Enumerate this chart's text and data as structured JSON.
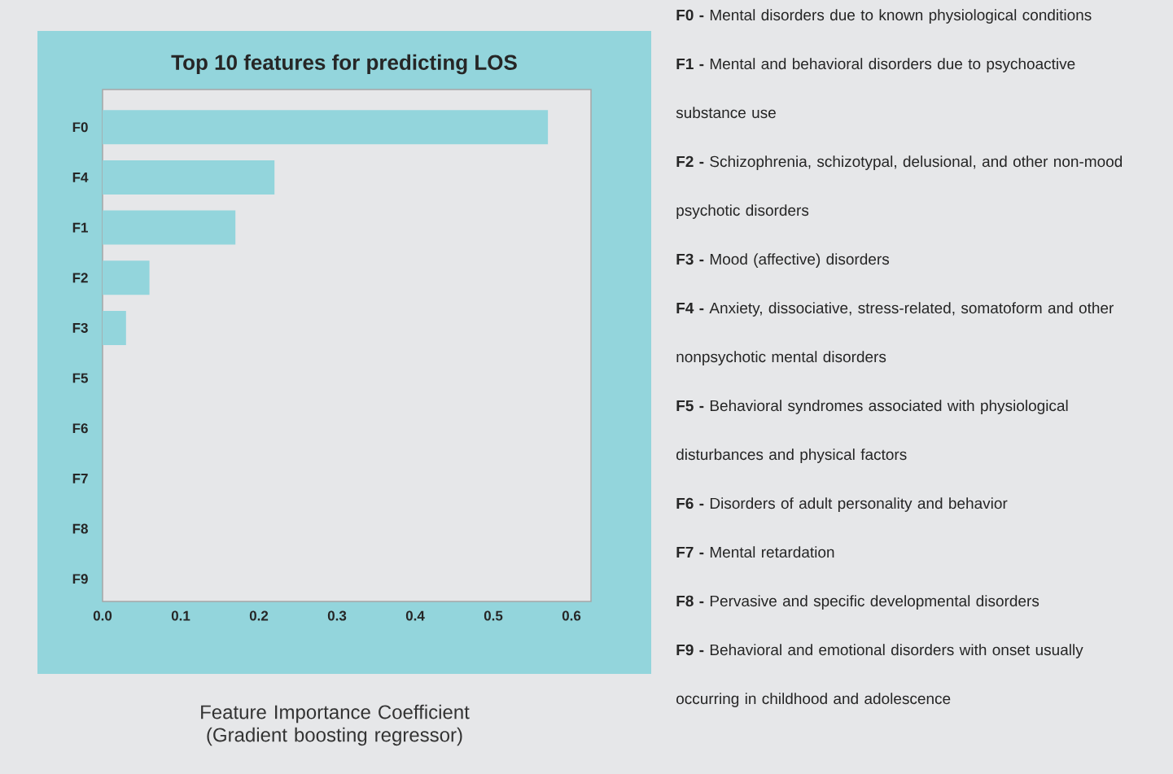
{
  "chart_data": {
    "type": "bar",
    "orientation": "horizontal",
    "title": "Top 10 features for predicting LOS",
    "xlabel": "Feature Importance Coefficient (Gradient boosting regressor)",
    "categories": [
      "F0",
      "F4",
      "F1",
      "F2",
      "F3",
      "F5",
      "F6",
      "F7",
      "F8",
      "F9"
    ],
    "values": [
      0.57,
      0.22,
      0.17,
      0.06,
      0.03,
      0,
      0,
      0,
      0,
      0
    ],
    "color": "#93d5dc",
    "xlim": [
      0,
      0.625
    ],
    "xticks": [
      {
        "value": 0,
        "label": "0.0"
      },
      0.1,
      0.2,
      0.3,
      0.4,
      0.5,
      0.6
    ],
    "grid": false,
    "annotations": [
      "**F0 -** Mental disorders due to known physiological conditions",
      "**F1 -** Mental and behavioral disorders due to psychoactive substance use",
      "**F2 -** Schizophrenia, schizotypal, delusional, and other non-mood psychotic disorders",
      "**F3 -** Mood (affective) disorders",
      "**F4 -**  Anxiety, dissociative, stress-related, somatoform and other nonpsychotic mental disorders",
      "**F5 -** Behavioral syndromes associated with physiological disturbances and physical factors",
      "**F6 -** Disorders of adult personality and behavior",
      "**F7 -** Mental retardation",
      "**F8 -** Pervasive and specific developmental disorders",
      "**F9 -** Behavioral and emotional disorders with onset usually occurring in childhood and adolescence"
    ]
  }
}
